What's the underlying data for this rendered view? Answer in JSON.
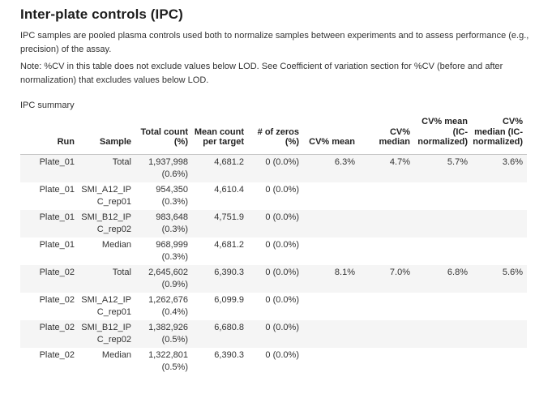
{
  "page": {
    "title": "Inter-plate controls (IPC)",
    "intro": "IPC samples are pooled plasma controls used both to normalize samples between experiments and to assess performance (e.g.,\nprecision) of the assay.",
    "note": "Note: %CV in this table does not exclude values below LOD. See Coefficient of variation section for %CV (before and after\nnormalization) that excludes values below LOD."
  },
  "colors": {
    "stripe": "#f5f5f5",
    "header_border": "#c5c5c5",
    "divider": "#e2e2e2",
    "text": "#333333",
    "heading_text": "#1c1c1c"
  },
  "table": {
    "caption": "IPC summary",
    "columns": [
      {
        "id": "run",
        "label": "Run"
      },
      {
        "id": "sample",
        "label": "Sample"
      },
      {
        "id": "total_count",
        "label": "Total count\n(%)"
      },
      {
        "id": "mean_count",
        "label": "Mean count\nper target"
      },
      {
        "id": "zeros",
        "label": "# of zeros\n(%)"
      },
      {
        "id": "cv_mean",
        "label": "CV% mean"
      },
      {
        "id": "cv_median",
        "label": "CV%\nmedian"
      },
      {
        "id": "cv_mean_ic",
        "label": "CV% mean\n(IC-\nnormalized)"
      },
      {
        "id": "cv_median_ic",
        "label": "CV%\nmedian (IC-\nnormalized)"
      }
    ],
    "rows": [
      {
        "run": "Plate_01",
        "sample": "Total",
        "total_count": "1,937,998\n(0.6%)",
        "mean_count": "4,681.2",
        "zeros": "0 (0.0%)",
        "cv_mean": "6.3%",
        "cv_median": "4.7%",
        "cv_mean_ic": "5.7%",
        "cv_median_ic": "3.6%"
      },
      {
        "run": "Plate_01",
        "sample": "SMI_A12_IP\nC_rep01",
        "total_count": "954,350\n(0.3%)",
        "mean_count": "4,610.4",
        "zeros": "0 (0.0%)",
        "cv_mean": "",
        "cv_median": "",
        "cv_mean_ic": "",
        "cv_median_ic": ""
      },
      {
        "run": "Plate_01",
        "sample": "SMI_B12_IP\nC_rep02",
        "total_count": "983,648\n(0.3%)",
        "mean_count": "4,751.9",
        "zeros": "0 (0.0%)",
        "cv_mean": "",
        "cv_median": "",
        "cv_mean_ic": "",
        "cv_median_ic": ""
      },
      {
        "run": "Plate_01",
        "sample": "Median",
        "total_count": "968,999\n(0.3%)",
        "mean_count": "4,681.2",
        "zeros": "0 (0.0%)",
        "cv_mean": "",
        "cv_median": "",
        "cv_mean_ic": "",
        "cv_median_ic": ""
      },
      {
        "run": "Plate_02",
        "sample": "Total",
        "total_count": "2,645,602\n(0.9%)",
        "mean_count": "6,390.3",
        "zeros": "0 (0.0%)",
        "cv_mean": "8.1%",
        "cv_median": "7.0%",
        "cv_mean_ic": "6.8%",
        "cv_median_ic": "5.6%"
      },
      {
        "run": "Plate_02",
        "sample": "SMI_A12_IP\nC_rep01",
        "total_count": "1,262,676\n(0.4%)",
        "mean_count": "6,099.9",
        "zeros": "0 (0.0%)",
        "cv_mean": "",
        "cv_median": "",
        "cv_mean_ic": "",
        "cv_median_ic": ""
      },
      {
        "run": "Plate_02",
        "sample": "SMI_B12_IP\nC_rep02",
        "total_count": "1,382,926\n(0.5%)",
        "mean_count": "6,680.8",
        "zeros": "0 (0.0%)",
        "cv_mean": "",
        "cv_median": "",
        "cv_mean_ic": "",
        "cv_median_ic": ""
      },
      {
        "run": "Plate_02",
        "sample": "Median",
        "total_count": "1,322,801\n(0.5%)",
        "mean_count": "6,390.3",
        "zeros": "0 (0.0%)",
        "cv_mean": "",
        "cv_median": "",
        "cv_mean_ic": "",
        "cv_median_ic": ""
      }
    ]
  }
}
